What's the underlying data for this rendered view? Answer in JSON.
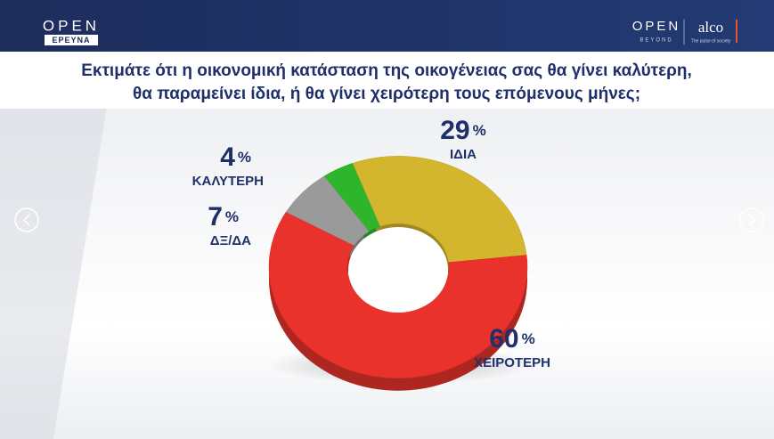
{
  "header": {
    "logo_top": "OPEN",
    "logo_bottom": "ΕΡΕΥΝΑ",
    "partner_top": "OPEN",
    "partner_bottom": "BEYOND",
    "partner2": "alco",
    "partner2_tagline": "The pulse of society"
  },
  "chart_data": {
    "type": "donut",
    "title": [
      "Εκτιμάτε ότι η οικονομική κατάσταση της οικογένειας σας θα γίνει καλύτερη,",
      "θα παραμείνει ίδια, ή θα γίνει χειρότερη τους επόμενους μήνες;"
    ],
    "categories": [
      "ΚΑΛΥΤΕΡΗ",
      "ΙΔΙΑ",
      "ΧΕΙΡΟΤΕΡΗ",
      "ΔΞ/ΔΑ"
    ],
    "values": [
      4,
      29,
      60,
      7
    ],
    "unit": "%",
    "colors": [
      "#2fb52c",
      "#d4b52e",
      "#e8322b",
      "#9a9a9a"
    ]
  }
}
